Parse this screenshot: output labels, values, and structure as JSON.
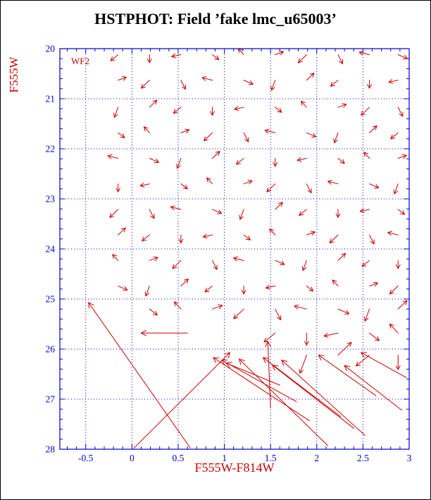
{
  "title": "HSTPHOT: Field ’fake lmc_u65003’",
  "colors": {
    "red": "#cc0000",
    "blue": "#0000cc",
    "black": "#000000",
    "background": "#ffffff"
  },
  "chart_data": {
    "type": "vector-field",
    "title": "HSTPHOT: Field ’fake lmc_u65003’",
    "xlabel": "F555W-F814W",
    "ylabel": "F555W",
    "annotation": "WF2",
    "xlim": [
      -0.78,
      3.0
    ],
    "ylim": [
      28,
      20
    ],
    "x_ticks": [
      -0.5,
      0,
      0.5,
      1,
      1.5,
      2,
      2.5,
      3
    ],
    "x_tick_labels": [
      "-0.5",
      "0",
      "0.5",
      "1",
      "1.5",
      "2",
      "2.5",
      "3"
    ],
    "y_ticks": [
      20,
      21,
      22,
      23,
      24,
      25,
      26,
      27,
      28
    ],
    "y_tick_labels": [
      "20",
      "21",
      "22",
      "23",
      "24",
      "25",
      "26",
      "27",
      "28"
    ],
    "x_minor_step": 0.1,
    "y_minor_step": 0.2,
    "grid": "dotted",
    "vector_grid": {
      "cols": [
        -0.15,
        0.19,
        0.53,
        0.87,
        1.21,
        1.55,
        1.89,
        2.23,
        2.57,
        2.88
      ],
      "offsets": [
        [
          -0.08,
          0.12
        ],
        [
          0.0,
          0.16
        ],
        [
          -0.1,
          0.04
        ],
        [
          0.07,
          0.1
        ],
        [
          -0.06,
          -0.12
        ],
        [
          0.09,
          -0.06
        ],
        [
          -0.09,
          0.16
        ],
        [
          0.05,
          0.18
        ],
        [
          -0.11,
          -0.05
        ],
        [
          0.1,
          0.08
        ],
        [
          -0.04,
          0.2
        ],
        [
          0.08,
          -0.14
        ]
      ],
      "rows": [
        {
          "y": 20.12,
          "from": 0,
          "to": 9,
          "start": 0
        },
        {
          "y": 20.63,
          "from": 0,
          "to": 9,
          "start": 5
        },
        {
          "y": 21.17,
          "from": 0,
          "to": 9,
          "start": 10
        },
        {
          "y": 21.68,
          "from": 0,
          "to": 9,
          "start": 3
        },
        {
          "y": 22.19,
          "from": 0,
          "to": 9,
          "start": 8
        },
        {
          "y": 22.7,
          "from": 0,
          "to": 9,
          "start": 1
        },
        {
          "y": 23.21,
          "from": 0,
          "to": 9,
          "start": 6
        },
        {
          "y": 23.72,
          "from": 0,
          "to": 9,
          "start": 11
        },
        {
          "y": 24.23,
          "from": 0,
          "to": 9,
          "start": 4
        },
        {
          "y": 24.74,
          "from": 0,
          "to": 9,
          "start": 9
        },
        {
          "y": 25.2,
          "from": 1,
          "to": 9,
          "start": 2,
          "scale": 1.2
        },
        {
          "y": 25.68,
          "from": 5,
          "to": 9,
          "start": 7,
          "scale": 1.5
        },
        {
          "y": 26.12,
          "from": 6,
          "to": 9,
          "start": 4,
          "scale": 1.8
        }
      ]
    },
    "large_arrows": [
      [
        0.63,
        27.97,
        -0.47,
        25.07
      ],
      [
        0.02,
        27.98,
        1.06,
        26.07
      ],
      [
        0.6,
        25.68,
        0.1,
        25.68
      ],
      [
        1.92,
        27.43,
        0.88,
        26.17
      ],
      [
        1.78,
        27.05,
        0.97,
        26.22
      ],
      [
        1.6,
        26.72,
        1.02,
        26.28
      ],
      [
        2.12,
        27.93,
        1.16,
        26.2
      ],
      [
        2.26,
        27.35,
        1.42,
        26.17
      ],
      [
        2.52,
        27.72,
        1.62,
        26.22
      ],
      [
        2.4,
        27.58,
        1.52,
        26.32
      ],
      [
        2.64,
        26.93,
        2.02,
        26.12
      ],
      [
        2.97,
        26.57,
        2.48,
        26.07
      ],
      [
        2.92,
        27.22,
        2.3,
        26.33
      ],
      [
        1.5,
        27.18,
        1.47,
        25.85
      ]
    ]
  }
}
